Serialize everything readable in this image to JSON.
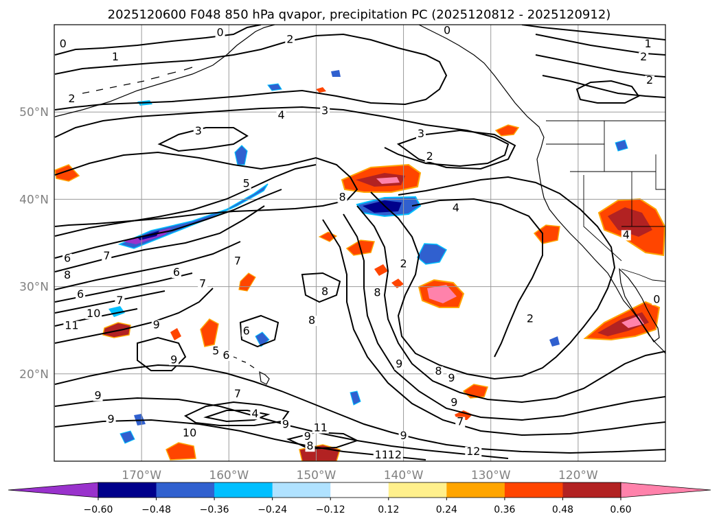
{
  "title": "2025120600 F048 850 hPa qvapor, precipitation PC (2025120812 - 2025120912)",
  "map": {
    "lon_range": [
      -180,
      -110
    ],
    "lat_range": [
      10,
      60
    ],
    "lon_ticks": [
      {
        "lon": -170,
        "label": "170°W"
      },
      {
        "lon": -160,
        "label": "160°W"
      },
      {
        "lon": -150,
        "label": "150°W"
      },
      {
        "lon": -140,
        "label": "140°W"
      },
      {
        "lon": -130,
        "label": "130°W"
      },
      {
        "lon": -120,
        "label": "120°W"
      }
    ],
    "lat_ticks": [
      {
        "lat": 50,
        "label": "50°N"
      },
      {
        "lat": 40,
        "label": "40°N"
      },
      {
        "lat": 30,
        "label": "30°N"
      },
      {
        "lat": 20,
        "label": "20°N"
      }
    ],
    "grid": true,
    "contour_labels": [
      {
        "lon": -179,
        "lat": 57.5,
        "text": "0"
      },
      {
        "lon": -173,
        "lat": 56.0,
        "text": "1"
      },
      {
        "lon": -178,
        "lat": 51.2,
        "text": "2"
      },
      {
        "lon": -161,
        "lat": 58.8,
        "text": "0"
      },
      {
        "lon": -153,
        "lat": 58.0,
        "text": "2"
      },
      {
        "lon": -135,
        "lat": 59.0,
        "text": "0"
      },
      {
        "lon": -112,
        "lat": 57.5,
        "text": "1"
      },
      {
        "lon": -112.5,
        "lat": 56.0,
        "text": "2"
      },
      {
        "lon": -111.8,
        "lat": 53.3,
        "text": "2"
      },
      {
        "lon": -154,
        "lat": 49.3,
        "text": "4"
      },
      {
        "lon": -149,
        "lat": 49.8,
        "text": "3"
      },
      {
        "lon": -163.5,
        "lat": 47.5,
        "text": "3"
      },
      {
        "lon": -138,
        "lat": 47.2,
        "text": "3"
      },
      {
        "lon": -137,
        "lat": 44.6,
        "text": "2"
      },
      {
        "lon": -158,
        "lat": 41.5,
        "text": "5"
      },
      {
        "lon": -147,
        "lat": 39.9,
        "text": "8"
      },
      {
        "lon": -134,
        "lat": 38.7,
        "text": "4"
      },
      {
        "lon": -114.5,
        "lat": 35.6,
        "text": "4"
      },
      {
        "lon": -178.5,
        "lat": 32.9,
        "text": "6"
      },
      {
        "lon": -174,
        "lat": 33.2,
        "text": "7"
      },
      {
        "lon": -178.5,
        "lat": 31.0,
        "text": "8"
      },
      {
        "lon": -166,
        "lat": 31.3,
        "text": "6"
      },
      {
        "lon": -177,
        "lat": 28.8,
        "text": "6"
      },
      {
        "lon": -172.5,
        "lat": 28.1,
        "text": "7"
      },
      {
        "lon": -175.5,
        "lat": 26.6,
        "text": "10"
      },
      {
        "lon": -178,
        "lat": 25.2,
        "text": "11"
      },
      {
        "lon": -163,
        "lat": 30.0,
        "text": "7"
      },
      {
        "lon": -159,
        "lat": 32.6,
        "text": "7"
      },
      {
        "lon": -149,
        "lat": 29.1,
        "text": "8"
      },
      {
        "lon": -143,
        "lat": 29.0,
        "text": "8"
      },
      {
        "lon": -140,
        "lat": 32.3,
        "text": "2"
      },
      {
        "lon": -150.5,
        "lat": 25.8,
        "text": "8"
      },
      {
        "lon": -158,
        "lat": 24.6,
        "text": "6"
      },
      {
        "lon": -168.3,
        "lat": 25.3,
        "text": "9"
      },
      {
        "lon": -161.5,
        "lat": 22.3,
        "text": "5"
      },
      {
        "lon": -160.3,
        "lat": 21.8,
        "text": "6"
      },
      {
        "lon": -166.3,
        "lat": 21.3,
        "text": "9"
      },
      {
        "lon": -173.5,
        "lat": 14.5,
        "text": "9"
      },
      {
        "lon": -175,
        "lat": 17.2,
        "text": "9"
      },
      {
        "lon": -164.5,
        "lat": 12.9,
        "text": "10"
      },
      {
        "lon": -157,
        "lat": 15.1,
        "text": "4"
      },
      {
        "lon": -159,
        "lat": 17.4,
        "text": "7"
      },
      {
        "lon": -153.5,
        "lat": 13.9,
        "text": "9"
      },
      {
        "lon": -149.5,
        "lat": 13.5,
        "text": "11"
      },
      {
        "lon": -151,
        "lat": 12.5,
        "text": "9"
      },
      {
        "lon": -150.7,
        "lat": 11.4,
        "text": "8"
      },
      {
        "lon": -140,
        "lat": 12.6,
        "text": "9"
      },
      {
        "lon": -142.5,
        "lat": 10.4,
        "text": "11"
      },
      {
        "lon": -141,
        "lat": 10.4,
        "text": "12"
      },
      {
        "lon": -132,
        "lat": 10.8,
        "text": "12"
      },
      {
        "lon": -133.5,
        "lat": 14.2,
        "text": "7"
      },
      {
        "lon": -140.5,
        "lat": 20.8,
        "text": "9"
      },
      {
        "lon": -136,
        "lat": 20.0,
        "text": "8"
      },
      {
        "lon": -134.5,
        "lat": 19.2,
        "text": "9"
      },
      {
        "lon": -134.2,
        "lat": 16.4,
        "text": "9"
      },
      {
        "lon": -125.5,
        "lat": 26.0,
        "text": "2"
      },
      {
        "lon": -111,
        "lat": 28.2,
        "text": "0"
      }
    ]
  },
  "legend": {
    "type": "colorbar",
    "placement": "bottom",
    "extend": "both",
    "under_color": "#9932cc",
    "over_color": "#ff82ab",
    "colors": [
      "#00008b",
      "#3060cf",
      "#00bfff",
      "#b0e2ff",
      "#ffffff",
      "#fff08c",
      "#ffa500",
      "#ff4500",
      "#b22222"
    ],
    "tick_labels": [
      "−0.60",
      "−0.48",
      "−0.36",
      "−0.24",
      "−0.12",
      "0.12",
      "0.24",
      "0.36",
      "0.48",
      "0.60"
    ]
  },
  "style": {
    "contour_color": "#000000",
    "grid_color": "#9a9a9a",
    "tick_color": "#808080"
  }
}
